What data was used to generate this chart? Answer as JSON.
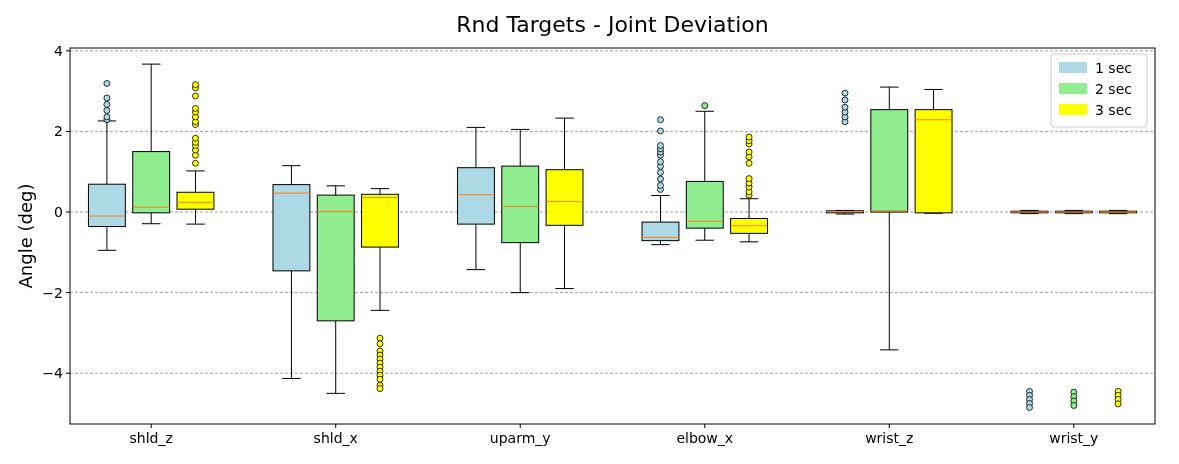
{
  "chart_data": {
    "type": "box",
    "title": "Rnd Targets - Joint Deviation",
    "ylabel": "Angle (deg)",
    "categories": [
      "shld_z",
      "shld_x",
      "uparm_y",
      "elbow_x",
      "wrist_z",
      "wrist_y"
    ],
    "ylim": [
      -5.26,
      4.07
    ],
    "yticks": [
      -4,
      -2,
      0,
      2,
      4
    ],
    "grid": "y",
    "legend": "top right",
    "series": [
      {
        "name": "1 sec",
        "color": "#add8e6",
        "boxes": [
          {
            "low": -0.95,
            "q1": -0.36,
            "median": -0.1,
            "q3": 0.69,
            "high": 2.26,
            "outliers": [
              2.29,
              2.36,
              2.52,
              2.67,
              2.83,
              3.19
            ]
          },
          {
            "low": -4.13,
            "q1": -1.46,
            "median": 0.47,
            "q3": 0.68,
            "high": 1.15
          },
          {
            "low": -1.43,
            "q1": -0.3,
            "median": 0.43,
            "q3": 1.1,
            "high": 2.1
          },
          {
            "low": -0.81,
            "q1": -0.71,
            "median": -0.63,
            "q3": -0.25,
            "high": 0.41,
            "outliers": [
              0.56,
              0.66,
              0.82,
              0.98,
              1.13,
              1.25,
              1.41,
              1.49,
              1.57,
              1.65,
              2.01,
              2.29
            ]
          },
          {
            "low": -0.05,
            "q1": -0.02,
            "median": 0.01,
            "q3": 0.03,
            "high": 0.04,
            "outliers": [
              2.24,
              2.36,
              2.48,
              2.6,
              2.78,
              2.95
            ]
          },
          {
            "low": -0.04,
            "q1": -0.02,
            "median": 0,
            "q3": 0.02,
            "high": 0.04,
            "outliers": [
              -4.45,
              -4.55,
              -4.65,
              -4.75,
              -4.85
            ]
          }
        ]
      },
      {
        "name": "2 sec",
        "color": "#90ee90",
        "boxes": [
          {
            "low": -0.29,
            "q1": -0.02,
            "median": 0.12,
            "q3": 1.5,
            "high": 3.67
          },
          {
            "low": -4.5,
            "q1": -2.7,
            "median": 0.01,
            "q3": 0.42,
            "high": 0.65
          },
          {
            "low": -2.0,
            "q1": -0.76,
            "median": 0.14,
            "q3": 1.14,
            "high": 2.05
          },
          {
            "low": -0.7,
            "q1": -0.4,
            "median": -0.23,
            "q3": 0.76,
            "high": 2.5,
            "outliers": [
              2.64
            ]
          },
          {
            "low": -3.42,
            "q1": 0,
            "median": 0.03,
            "q3": 2.54,
            "high": 3.1
          },
          {
            "low": -0.04,
            "q1": -0.02,
            "median": 0,
            "q3": 0.02,
            "high": 0.04,
            "outliers": [
              -4.47,
              -4.58,
              -4.69,
              -4.8
            ]
          }
        ]
      },
      {
        "name": "3 sec",
        "color": "#ffff00",
        "boxes": [
          {
            "low": -0.3,
            "q1": 0.07,
            "median": 0.24,
            "q3": 0.49,
            "high": 1.02,
            "outliers": [
              1.21,
              1.41,
              1.54,
              1.65,
              1.73,
              1.83,
              2.17,
              2.24,
              2.36,
              2.48,
              2.57,
              2.88,
              3.08,
              3.16
            ]
          },
          {
            "low": -2.44,
            "q1": -0.87,
            "median": 0.36,
            "q3": 0.44,
            "high": 0.58,
            "outliers": [
              -3.13,
              -3.27,
              -3.45,
              -3.55,
              -3.65,
              -3.75,
              -3.85,
              -3.95,
              -4.05,
              -4.15,
              -4.3,
              -4.38
            ]
          },
          {
            "low": -1.9,
            "q1": -0.33,
            "median": 0.26,
            "q3": 1.05,
            "high": 2.33
          },
          {
            "low": -0.74,
            "q1": -0.53,
            "median": -0.34,
            "q3": -0.16,
            "high": 0.33,
            "outliers": [
              0.42,
              0.5,
              0.62,
              0.72,
              0.83,
              1.21,
              1.37,
              1.49,
              1.69,
              1.77,
              1.86
            ]
          },
          {
            "low": -0.03,
            "q1": -0.02,
            "median": 2.29,
            "q3": 2.54,
            "high": 3.04
          },
          {
            "low": -0.04,
            "q1": -0.02,
            "median": 0,
            "q3": 0.02,
            "high": 0.04,
            "outliers": [
              -4.45,
              -4.55,
              -4.65,
              -4.76
            ]
          }
        ]
      }
    ]
  }
}
